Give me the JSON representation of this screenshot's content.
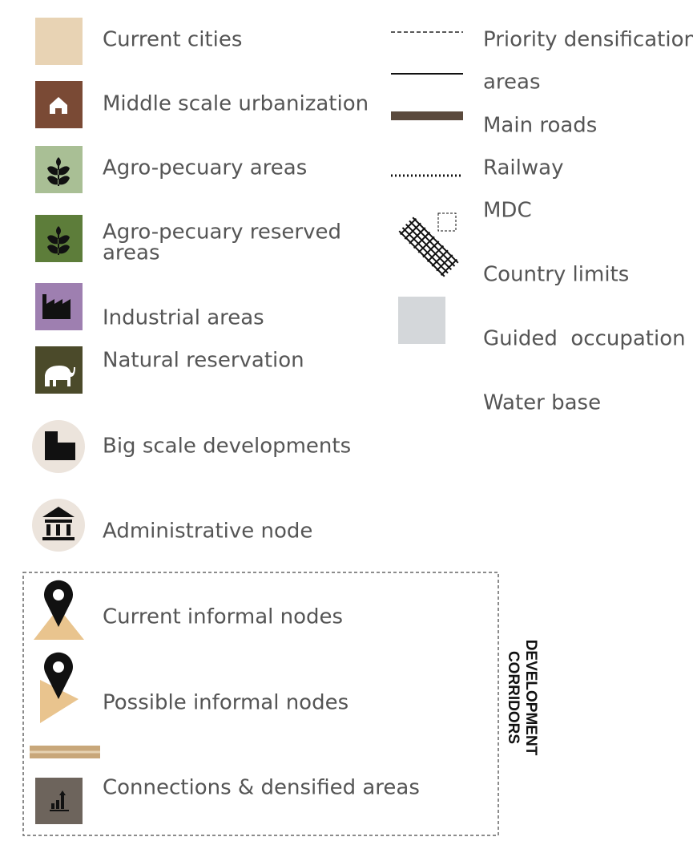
{
  "legend": {
    "left": [
      "Current cities",
      "Middle scale urbanization",
      "Agro-pecuary areas",
      "Agro-pecuary reserved",
      "areas",
      "Industrial areas",
      "Natural reservation",
      "Big scale developments",
      "Administrative node",
      "Current informal nodes",
      "Possible informal nodes",
      "Connections & densified areas"
    ],
    "right": [
      "Priority densification",
      "areas",
      "Main roads",
      "Railway",
      "MDC",
      "Country limits",
      "Guided  occupation",
      "Water base"
    ],
    "corridor_label": [
      "DEVELOPMENT",
      "CORRIDORS"
    ]
  }
}
